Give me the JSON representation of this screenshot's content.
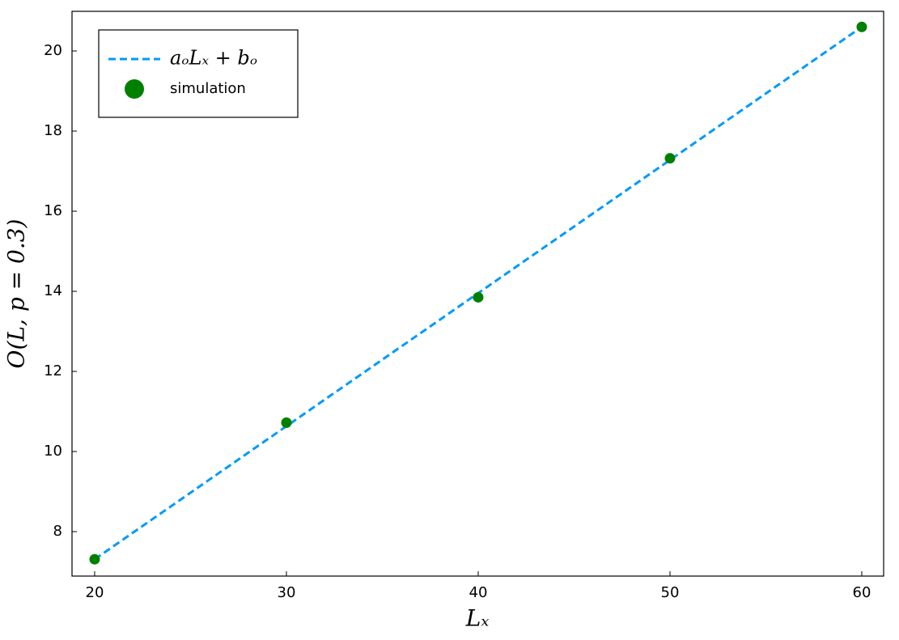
{
  "chart_data": {
    "type": "scatter",
    "x_label": "Lₓ",
    "y_label": "O(L, p = 0.3)",
    "xlim": [
      18.82,
      61.14
    ],
    "ylim": [
      6.89,
      20.99
    ],
    "xticks": [
      20,
      30,
      40,
      50,
      60
    ],
    "yticks": [
      8,
      10,
      12,
      14,
      16,
      18,
      20
    ],
    "grid": false,
    "legend": "top-left",
    "series": [
      {
        "name": "aₒLₓ + bₒ",
        "kind": "line",
        "color": "#009af9",
        "x": [
          20,
          60
        ],
        "values": [
          7.31,
          20.6
        ]
      },
      {
        "name": "simulation",
        "kind": "scatter",
        "color": "#008000",
        "x": [
          20,
          30,
          40,
          50,
          60
        ],
        "values": [
          7.31,
          10.72,
          13.85,
          17.32,
          20.6
        ]
      }
    ]
  }
}
